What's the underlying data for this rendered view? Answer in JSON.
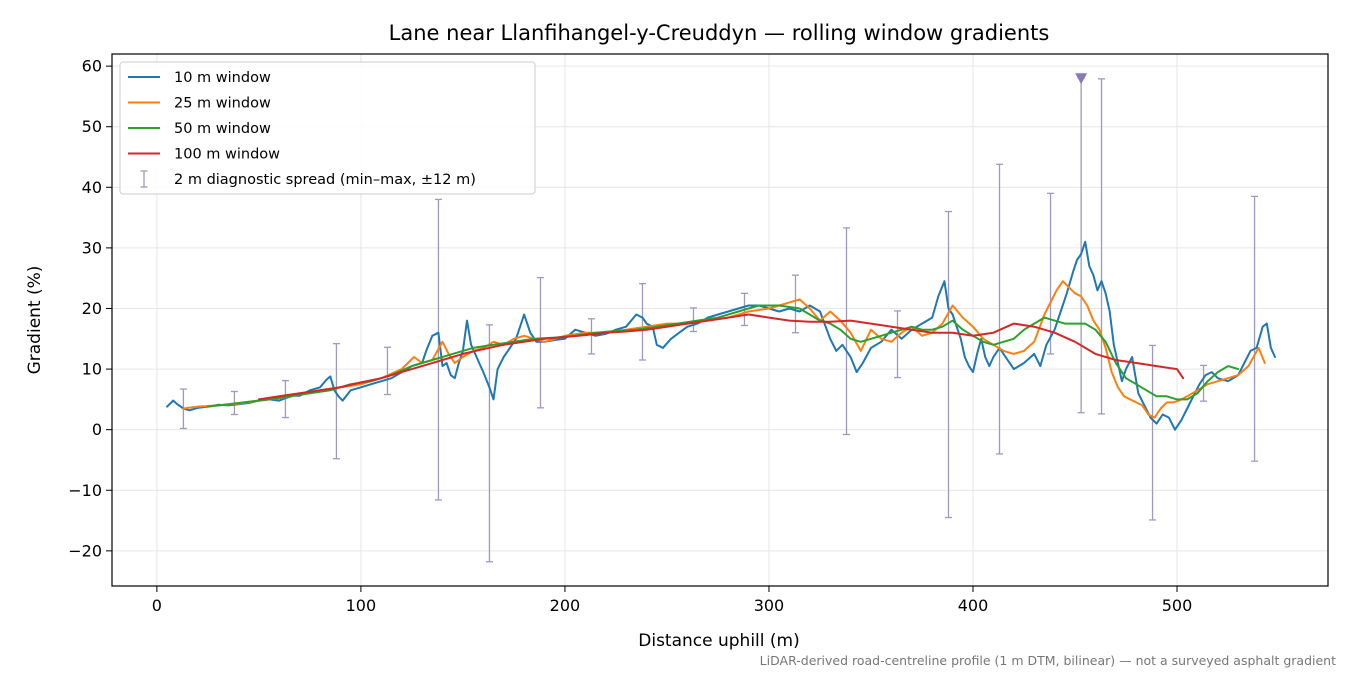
{
  "chart_data": {
    "type": "line",
    "title": "Lane near Llanfihangel-y-Creuddyn — rolling window gradients",
    "xlabel": "Distance uphill (m)",
    "ylabel": "Gradient (%)",
    "xlim": [
      -22,
      574
    ],
    "ylim": [
      -25.8,
      62
    ],
    "x_ticks": [
      0,
      100,
      200,
      300,
      400,
      500
    ],
    "y_ticks": [
      -20,
      -10,
      0,
      10,
      20,
      30,
      40,
      50,
      60
    ],
    "x_tick_labels": [
      "0",
      "100",
      "200",
      "300",
      "400",
      "500"
    ],
    "y_tick_labels": [
      "−20",
      "−10",
      "0",
      "10",
      "20",
      "30",
      "40",
      "50",
      "60"
    ],
    "grid": true,
    "legend_position": "upper-left",
    "footnote": "LiDAR-derived road-centreline profile (1 m DTM, bilinear) — not a surveyed asphalt gradient",
    "series": [
      {
        "name": "10 m window",
        "color": "#1f77b4",
        "x": [
          5,
          8,
          10,
          13,
          16,
          20,
          25,
          30,
          35,
          40,
          45,
          50,
          55,
          60,
          63,
          67,
          70,
          75,
          80,
          83,
          85,
          87,
          89,
          91,
          95,
          100,
          105,
          110,
          115,
          120,
          125,
          130,
          132,
          135,
          138,
          140,
          142,
          144,
          146,
          148,
          150,
          152,
          154,
          156,
          158,
          160,
          163,
          165,
          167,
          170,
          173,
          176,
          178,
          180,
          183,
          186,
          190,
          195,
          200,
          205,
          210,
          215,
          220,
          225,
          230,
          235,
          238,
          240,
          243,
          245,
          248,
          252,
          256,
          260,
          265,
          270,
          275,
          280,
          285,
          290,
          295,
          300,
          305,
          310,
          315,
          320,
          325,
          330,
          333,
          336,
          338,
          340,
          343,
          346,
          350,
          355,
          360,
          365,
          370,
          375,
          380,
          383,
          386,
          388,
          390,
          392,
          394,
          396,
          398,
          400,
          402,
          404,
          406,
          408,
          410,
          413,
          416,
          420,
          425,
          430,
          433,
          436,
          440,
          443,
          446,
          449,
          451,
          453,
          455,
          457,
          459,
          461,
          463,
          465,
          467,
          469,
          471,
          473,
          475,
          478,
          481,
          484,
          487,
          490,
          493,
          496,
          499,
          502,
          505,
          508,
          511,
          514,
          517,
          520,
          525,
          530,
          533,
          536,
          539,
          542,
          544,
          546,
          548
        ],
        "values": [
          3.8,
          4.8,
          4.2,
          3.5,
          3.2,
          3.6,
          3.8,
          4.1,
          4.0,
          4.2,
          4.4,
          4.8,
          5.0,
          4.8,
          5.2,
          5.6,
          5.6,
          6.5,
          7.0,
          8.2,
          8.8,
          6.5,
          5.5,
          4.8,
          6.5,
          7.0,
          7.5,
          8.0,
          8.5,
          9.5,
          10.5,
          11.0,
          13.0,
          15.5,
          16.0,
          10.5,
          11.0,
          9.0,
          8.5,
          11.0,
          13.0,
          18.0,
          14.0,
          12.5,
          11.0,
          9.5,
          7.0,
          5.0,
          10.0,
          12.0,
          13.5,
          15.0,
          17.0,
          19.0,
          16.0,
          14.5,
          14.5,
          14.8,
          15.0,
          16.5,
          16.0,
          15.5,
          15.8,
          16.5,
          17.0,
          19.0,
          18.5,
          17.5,
          17.0,
          14.0,
          13.5,
          15.0,
          16.0,
          17.0,
          17.5,
          18.5,
          19.0,
          19.5,
          20.0,
          20.5,
          20.5,
          20.0,
          19.5,
          20.0,
          19.5,
          20.5,
          19.5,
          15.0,
          13.0,
          14.0,
          13.0,
          12.0,
          9.5,
          11.0,
          13.5,
          14.5,
          16.5,
          15.0,
          16.5,
          17.5,
          18.5,
          22.0,
          24.5,
          20.0,
          19.0,
          17.0,
          15.0,
          12.0,
          10.5,
          9.5,
          12.5,
          15.0,
          12.0,
          10.5,
          12.0,
          13.5,
          12.0,
          10.0,
          11.0,
          12.5,
          10.5,
          14.0,
          16.5,
          19.5,
          22.5,
          26.0,
          28.0,
          29.0,
          31.0,
          27.0,
          25.5,
          23.0,
          24.5,
          22.5,
          19.5,
          14.0,
          11.0,
          8.0,
          10.0,
          12.0,
          6.0,
          4.0,
          2.0,
          1.0,
          2.5,
          2.0,
          0.0,
          1.5,
          3.5,
          5.5,
          7.5,
          9.0,
          9.5,
          8.5,
          8.0,
          9.0,
          11.0,
          13.0,
          13.5,
          17.0,
          17.5,
          13.5,
          12.0
        ]
      },
      {
        "name": "25 m window",
        "color": "#ff7f0e",
        "x": [
          13,
          20,
          30,
          40,
          50,
          60,
          70,
          80,
          90,
          100,
          110,
          120,
          126,
          130,
          135,
          140,
          143,
          146,
          150,
          155,
          160,
          165,
          170,
          175,
          180,
          185,
          190,
          195,
          200,
          210,
          220,
          230,
          240,
          250,
          260,
          270,
          280,
          290,
          300,
          305,
          310,
          315,
          320,
          325,
          330,
          335,
          340,
          345,
          350,
          355,
          360,
          365,
          370,
          375,
          380,
          385,
          390,
          395,
          400,
          405,
          410,
          415,
          420,
          425,
          430,
          435,
          438,
          441,
          444,
          447,
          450,
          453,
          456,
          459,
          462,
          465,
          468,
          471,
          474,
          477,
          480,
          483,
          486,
          489,
          492,
          495,
          498,
          501,
          505,
          510,
          515,
          520,
          525,
          530,
          535,
          540,
          543
        ],
        "values": [
          3.5,
          3.8,
          4.0,
          4.3,
          4.8,
          5.2,
          5.8,
          6.5,
          7.0,
          7.5,
          8.5,
          10.0,
          12.0,
          11.0,
          11.5,
          14.5,
          12.5,
          11.0,
          12.0,
          13.0,
          13.5,
          14.5,
          14.0,
          15.0,
          15.5,
          15.0,
          14.5,
          15.0,
          15.5,
          16.0,
          16.0,
          16.5,
          17.0,
          17.5,
          17.5,
          18.0,
          18.5,
          19.5,
          20.0,
          20.5,
          21.0,
          21.5,
          20.0,
          18.0,
          19.5,
          18.0,
          16.0,
          13.0,
          16.5,
          15.0,
          14.5,
          16.0,
          17.0,
          15.5,
          16.0,
          17.5,
          20.5,
          18.5,
          17.0,
          15.0,
          14.0,
          13.0,
          12.5,
          13.0,
          14.5,
          19.0,
          21.0,
          23.0,
          24.5,
          23.5,
          22.5,
          22.0,
          20.5,
          18.0,
          16.5,
          13.5,
          9.5,
          7.0,
          5.5,
          5.0,
          4.5,
          4.0,
          2.5,
          2.0,
          3.5,
          4.5,
          4.5,
          4.8,
          5.5,
          6.5,
          7.5,
          8.0,
          8.5,
          9.0,
          10.5,
          13.5,
          11.0
        ]
      },
      {
        "name": "50 m window",
        "color": "#2ca02c",
        "x": [
          25,
          35,
          45,
          55,
          65,
          75,
          85,
          95,
          105,
          115,
          125,
          135,
          145,
          155,
          165,
          175,
          185,
          195,
          205,
          215,
          225,
          235,
          245,
          255,
          265,
          275,
          285,
          295,
          305,
          315,
          325,
          330,
          335,
          340,
          345,
          350,
          355,
          360,
          365,
          370,
          375,
          380,
          385,
          390,
          395,
          400,
          405,
          410,
          415,
          420,
          425,
          430,
          435,
          440,
          445,
          450,
          455,
          460,
          465,
          470,
          475,
          480,
          485,
          490,
          495,
          500,
          505,
          510,
          515,
          520,
          525,
          530
        ],
        "values": [
          3.8,
          4.2,
          4.6,
          5.0,
          5.5,
          6.0,
          6.5,
          7.5,
          8.0,
          9.0,
          10.5,
          11.5,
          12.5,
          13.5,
          14.0,
          14.5,
          15.0,
          15.2,
          15.5,
          16.0,
          16.3,
          16.5,
          17.0,
          17.5,
          18.0,
          18.5,
          19.5,
          20.5,
          20.5,
          20.0,
          18.0,
          17.5,
          16.5,
          15.0,
          14.5,
          15.0,
          15.5,
          16.0,
          16.5,
          17.0,
          16.5,
          16.5,
          17.0,
          18.0,
          16.5,
          15.5,
          14.5,
          14.0,
          14.5,
          15.0,
          16.5,
          17.5,
          18.5,
          18.0,
          17.5,
          17.5,
          17.5,
          16.5,
          14.5,
          11.0,
          8.5,
          7.5,
          6.5,
          5.5,
          5.5,
          5.0,
          5.0,
          6.0,
          8.0,
          9.5,
          10.5,
          10.0
        ]
      },
      {
        "name": "100 m window",
        "color": "#d62728",
        "x": [
          50,
          60,
          70,
          80,
          90,
          100,
          110,
          120,
          130,
          140,
          150,
          160,
          170,
          180,
          190,
          200,
          210,
          220,
          230,
          240,
          250,
          260,
          270,
          280,
          290,
          300,
          310,
          320,
          330,
          340,
          350,
          360,
          370,
          380,
          390,
          400,
          410,
          420,
          430,
          440,
          450,
          460,
          470,
          480,
          490,
          500,
          503
        ],
        "values": [
          5.0,
          5.5,
          6.0,
          6.5,
          7.0,
          7.8,
          8.5,
          9.5,
          10.5,
          11.5,
          12.5,
          13.3,
          14.0,
          14.5,
          15.0,
          15.3,
          15.6,
          16.0,
          16.2,
          16.5,
          17.0,
          17.5,
          18.0,
          18.5,
          19.0,
          18.5,
          18.0,
          17.8,
          17.8,
          18.0,
          17.5,
          17.0,
          16.5,
          16.0,
          16.0,
          15.5,
          16.0,
          17.5,
          17.0,
          16.0,
          14.5,
          12.5,
          11.5,
          11.0,
          10.5,
          10.0,
          8.5
        ]
      }
    ],
    "error_bars": {
      "name": "2 m diagnostic spread (min–max, ±12 m)",
      "color": "#9c9ac0",
      "x": [
        13,
        38,
        63,
        88,
        113,
        138,
        163,
        188,
        213,
        238,
        263,
        288,
        313,
        338,
        363,
        388,
        413,
        438,
        453,
        463,
        488,
        513,
        538
      ],
      "y_min": [
        0.2,
        2.5,
        2.0,
        -4.8,
        5.8,
        -11.6,
        -21.8,
        3.6,
        12.5,
        11.5,
        16.2,
        17.2,
        16.0,
        -0.8,
        8.6,
        -14.5,
        -4.0,
        12.5,
        2.8,
        2.6,
        -14.9,
        4.7,
        -5.2
      ],
      "y_max": [
        6.7,
        6.3,
        8.1,
        14.2,
        13.6,
        38.0,
        17.3,
        25.1,
        18.3,
        24.1,
        20.1,
        22.5,
        25.5,
        33.3,
        19.6,
        36.0,
        43.8,
        39.0,
        58.0,
        57.9,
        13.9,
        10.6,
        38.5
      ]
    },
    "marker": {
      "x": 453,
      "y": 58,
      "shape": "triangle-down",
      "color": "#8c78b4"
    }
  }
}
